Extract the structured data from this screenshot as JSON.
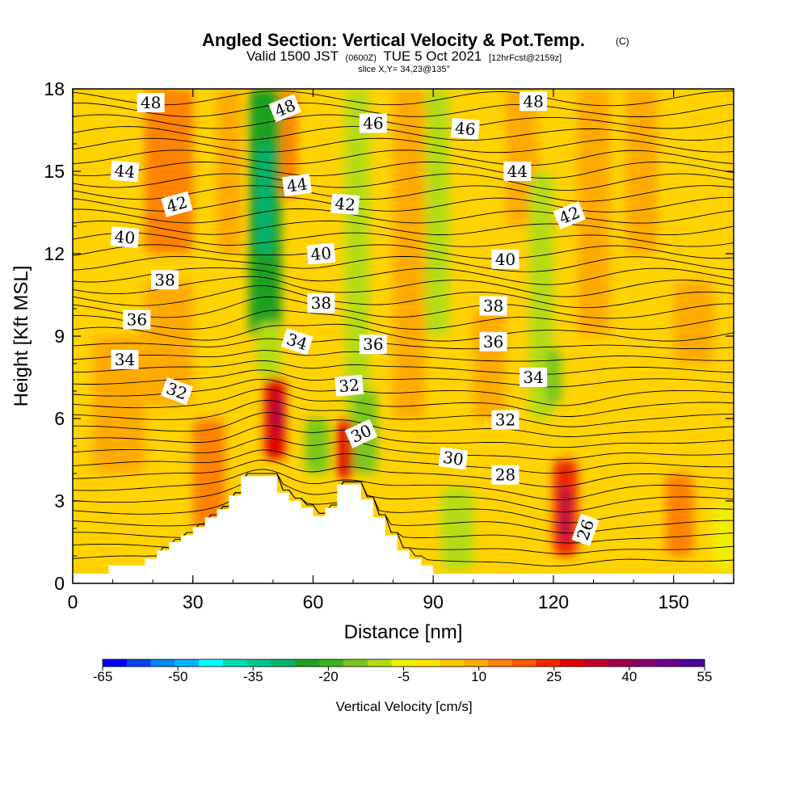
{
  "chart_data": {
    "type": "heatmap",
    "title": "Angled Section: Vertical Velocity & Pot.Temp.",
    "title_suffix": "(C)",
    "subtitle": {
      "p1": "Valid 1500 JST",
      "p2": "(0600Z)",
      "p3": "TUE 5 Oct 2021",
      "p4": "[12hrFcst@2159z]"
    },
    "slice": "slice X,Y= 34,23@135°",
    "xlabel": "Distance [nm]",
    "ylabel": "Height [Kft MSL]",
    "xlim": [
      0,
      165
    ],
    "ylim": [
      0,
      18
    ],
    "xticks": [
      0,
      30,
      60,
      90,
      120,
      150
    ],
    "yticks": [
      0,
      3,
      6,
      9,
      12,
      15,
      18
    ],
    "colorbar": {
      "title": "Vertical Velocity [cm/s]",
      "tick_labels": [
        "-65",
        "-50",
        "-35",
        "-20",
        "-5",
        "10",
        "25",
        "40",
        "55"
      ],
      "colors": [
        "#0000ff",
        "#0a44f0",
        "#0088ff",
        "#00b4ff",
        "#00ffff",
        "#00dcb4",
        "#00c890",
        "#00b46e",
        "#1ea022",
        "#3cb41e",
        "#78c81e",
        "#b4dc14",
        "#f0f000",
        "#ffe600",
        "#ffc800",
        "#ffaa00",
        "#ff8200",
        "#ff5a00",
        "#f02800",
        "#e00000",
        "#c0002a",
        "#a00050",
        "#8c006e",
        "#6e008c",
        "#50009c"
      ]
    },
    "terrain": [
      [
        0,
        0.35
      ],
      [
        9,
        0.35
      ],
      [
        9,
        0.65
      ],
      [
        15,
        0.65
      ],
      [
        15,
        0.65
      ],
      [
        18,
        0.65
      ],
      [
        18,
        0.9
      ],
      [
        21,
        0.9
      ],
      [
        21,
        1.2
      ],
      [
        24,
        1.2
      ],
      [
        24,
        1.5
      ],
      [
        27,
        1.5
      ],
      [
        27,
        1.75
      ],
      [
        30,
        1.75
      ],
      [
        30,
        2.05
      ],
      [
        33,
        2.05
      ],
      [
        33,
        2.4
      ],
      [
        36,
        2.4
      ],
      [
        36,
        2.7
      ],
      [
        39,
        2.7
      ],
      [
        39,
        3.2
      ],
      [
        42,
        3.2
      ],
      [
        42,
        3.9
      ],
      [
        48,
        3.9
      ],
      [
        48,
        3.9
      ],
      [
        51,
        3.9
      ],
      [
        51,
        3.3
      ],
      [
        54,
        3.3
      ],
      [
        54,
        3.0
      ],
      [
        57,
        3.0
      ],
      [
        57,
        2.75
      ],
      [
        60,
        2.75
      ],
      [
        60,
        2.45
      ],
      [
        63,
        2.45
      ],
      [
        63,
        2.75
      ],
      [
        66,
        2.75
      ],
      [
        66,
        3.6
      ],
      [
        69,
        3.6
      ],
      [
        69,
        3.6
      ],
      [
        72,
        3.6
      ],
      [
        72,
        3.05
      ],
      [
        75,
        3.05
      ],
      [
        75,
        2.4
      ],
      [
        78,
        2.4
      ],
      [
        78,
        1.75
      ],
      [
        81,
        1.75
      ],
      [
        81,
        1.2
      ],
      [
        84,
        1.2
      ],
      [
        84,
        0.9
      ],
      [
        87,
        0.9
      ],
      [
        87,
        0.65
      ],
      [
        90,
        0.65
      ],
      [
        90,
        0.35
      ],
      [
        165,
        0.35
      ]
    ],
    "cells": [
      {
        "x": [
          18,
          30
        ],
        "y": [
          12,
          18
        ],
        "w": 15
      },
      {
        "x": [
          18,
          30
        ],
        "y": [
          6.5,
          11
        ],
        "w": 10
      },
      {
        "x": [
          5,
          18
        ],
        "y": [
          4,
          9
        ],
        "w": 12
      },
      {
        "x": [
          44,
          52
        ],
        "y": [
          9,
          18
        ],
        "w": -25
      },
      {
        "x": [
          46,
          50
        ],
        "y": [
          12,
          16
        ],
        "w": -30
      },
      {
        "x": [
          52,
          56
        ],
        "y": [
          14,
          18
        ],
        "w": 15
      },
      {
        "x": [
          46,
          52
        ],
        "y": [
          7.5,
          9.5
        ],
        "w": -10
      },
      {
        "x": [
          48,
          53
        ],
        "y": [
          4.5,
          7.5
        ],
        "w": 30
      },
      {
        "x": [
          50,
          52
        ],
        "y": [
          5.5,
          6.8
        ],
        "w": 40
      },
      {
        "x": [
          58,
          64
        ],
        "y": [
          4,
          6
        ],
        "w": -15
      },
      {
        "x": [
          66,
          70
        ],
        "y": [
          3.8,
          6
        ],
        "w": 30
      },
      {
        "x": [
          68,
          74
        ],
        "y": [
          6,
          18
        ],
        "w": -12
      },
      {
        "x": [
          70,
          76
        ],
        "y": [
          4,
          7
        ],
        "w": -15
      },
      {
        "x": [
          36,
          42
        ],
        "y": [
          12,
          18
        ],
        "w": 12
      },
      {
        "x": [
          80,
          88
        ],
        "y": [
          6,
          18
        ],
        "w": 10
      },
      {
        "x": [
          88,
          94
        ],
        "y": [
          9,
          18
        ],
        "w": -8
      },
      {
        "x": [
          92,
          100
        ],
        "y": [
          0.5,
          3.5
        ],
        "w": -8
      },
      {
        "x": [
          108,
          116
        ],
        "y": [
          13,
          18
        ],
        "w": 12
      },
      {
        "x": [
          114,
          120
        ],
        "y": [
          6,
          15
        ],
        "w": -8
      },
      {
        "x": [
          118,
          122
        ],
        "y": [
          6.5,
          8.5
        ],
        "w": -15
      },
      {
        "x": [
          120,
          126
        ],
        "y": [
          1,
          4.5
        ],
        "w": 25
      },
      {
        "x": [
          122,
          124
        ],
        "y": [
          1.5,
          3.5
        ],
        "w": 40
      },
      {
        "x": [
          126,
          134
        ],
        "y": [
          9,
          18
        ],
        "w": 12
      },
      {
        "x": [
          148,
          155
        ],
        "y": [
          1,
          4
        ],
        "w": 15
      },
      {
        "x": [
          150,
          160
        ],
        "y": [
          8,
          11
        ],
        "w": 12
      },
      {
        "x": [
          100,
          108
        ],
        "y": [
          6,
          10
        ],
        "w": 8
      },
      {
        "x": [
          30,
          38
        ],
        "y": [
          2,
          6
        ],
        "w": 15
      },
      {
        "x": [
          138,
          146
        ],
        "y": [
          12,
          18
        ],
        "w": 10
      },
      {
        "x": [
          160,
          165
        ],
        "y": [
          0.5,
          3
        ],
        "w": -5
      }
    ],
    "contour_labels": [
      {
        "value": "48",
        "x": 19.5,
        "y": 17.5,
        "rot": 0
      },
      {
        "value": "48",
        "x": 53,
        "y": 17.3,
        "rot": -22
      },
      {
        "value": "46",
        "x": 75,
        "y": 16.75,
        "rot": 0
      },
      {
        "value": "46",
        "x": 98,
        "y": 16.55,
        "rot": 5
      },
      {
        "value": "48",
        "x": 115,
        "y": 17.55,
        "rot": 0
      },
      {
        "value": "44",
        "x": 13,
        "y": 15,
        "rot": 5
      },
      {
        "value": "44",
        "x": 56,
        "y": 14.5,
        "rot": -8
      },
      {
        "value": "44",
        "x": 111,
        "y": 15,
        "rot": 0
      },
      {
        "value": "42",
        "x": 26,
        "y": 13.8,
        "rot": -15
      },
      {
        "value": "42",
        "x": 68,
        "y": 13.8,
        "rot": 5
      },
      {
        "value": "42",
        "x": 124,
        "y": 13.4,
        "rot": -22
      },
      {
        "value": "40",
        "x": 13,
        "y": 12.6,
        "rot": 5
      },
      {
        "value": "40",
        "x": 62,
        "y": 12,
        "rot": -5
      },
      {
        "value": "40",
        "x": 108,
        "y": 11.8,
        "rot": 0
      },
      {
        "value": "38",
        "x": 23,
        "y": 11.05,
        "rot": 0
      },
      {
        "value": "38",
        "x": 62,
        "y": 10.2,
        "rot": 0
      },
      {
        "value": "38",
        "x": 105,
        "y": 10.1,
        "rot": 0
      },
      {
        "value": "36",
        "x": 16,
        "y": 9.6,
        "rot": 0
      },
      {
        "value": "36",
        "x": 75,
        "y": 8.7,
        "rot": 0
      },
      {
        "value": "36",
        "x": 105,
        "y": 8.8,
        "rot": 0
      },
      {
        "value": "34",
        "x": 13,
        "y": 8.15,
        "rot": 0
      },
      {
        "value": "34",
        "x": 56,
        "y": 8.8,
        "rot": 18
      },
      {
        "value": "34",
        "x": 115,
        "y": 7.5,
        "rot": 0
      },
      {
        "value": "32",
        "x": 26,
        "y": 7.0,
        "rot": 20
      },
      {
        "value": "32",
        "x": 69,
        "y": 7.2,
        "rot": -5
      },
      {
        "value": "32",
        "x": 108,
        "y": 5.95,
        "rot": 0
      },
      {
        "value": "30",
        "x": 72,
        "y": 5.45,
        "rot": -25
      },
      {
        "value": "30",
        "x": 95,
        "y": 4.55,
        "rot": 8
      },
      {
        "value": "28",
        "x": 108,
        "y": 3.95,
        "rot": 0
      },
      {
        "value": "26",
        "x": 128,
        "y": 1.95,
        "rot": -70
      }
    ]
  }
}
